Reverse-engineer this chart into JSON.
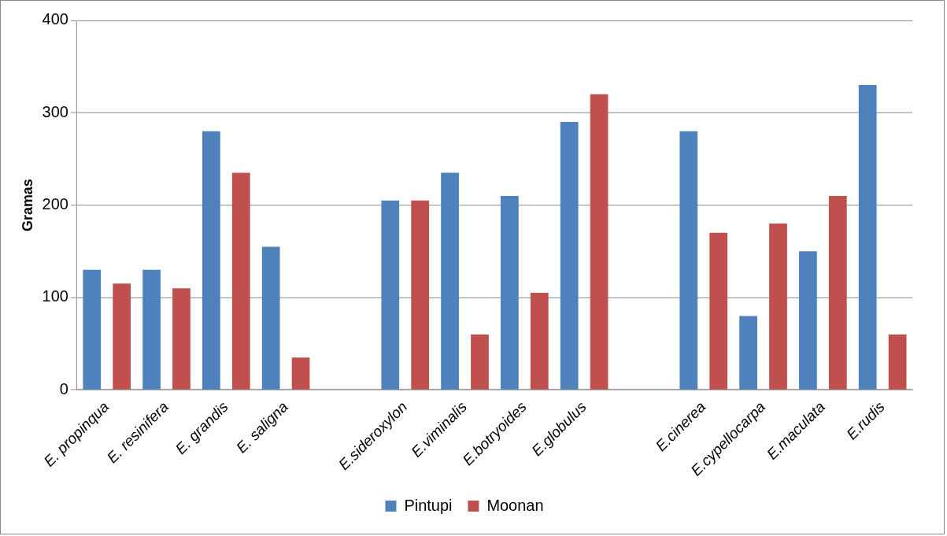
{
  "chart_data": {
    "type": "bar",
    "ylabel": "Gramas",
    "categories": [
      "E. propinqua",
      "E. resinifera",
      "E. grandis",
      "E. saligna",
      null,
      "E.sideroxylon",
      "E.viminalis",
      "E.botryoides",
      "E.globulus",
      null,
      "E.cinerea",
      "E.cypellocarpa",
      "E.maculata",
      "E.rudis"
    ],
    "series": [
      {
        "name": "Pintupi",
        "color": "#4f81bd",
        "values": [
          130,
          130,
          280,
          155,
          null,
          205,
          235,
          210,
          290,
          null,
          280,
          80,
          150,
          330
        ]
      },
      {
        "name": "Moonan",
        "color": "#c0504d",
        "values": [
          115,
          110,
          235,
          35,
          null,
          205,
          60,
          105,
          320,
          null,
          170,
          180,
          210,
          60
        ]
      }
    ],
    "ylim": [
      0,
      400
    ],
    "yticks": [
      0,
      100,
      200,
      300,
      400
    ],
    "grid": "y",
    "legend": "bottom"
  }
}
